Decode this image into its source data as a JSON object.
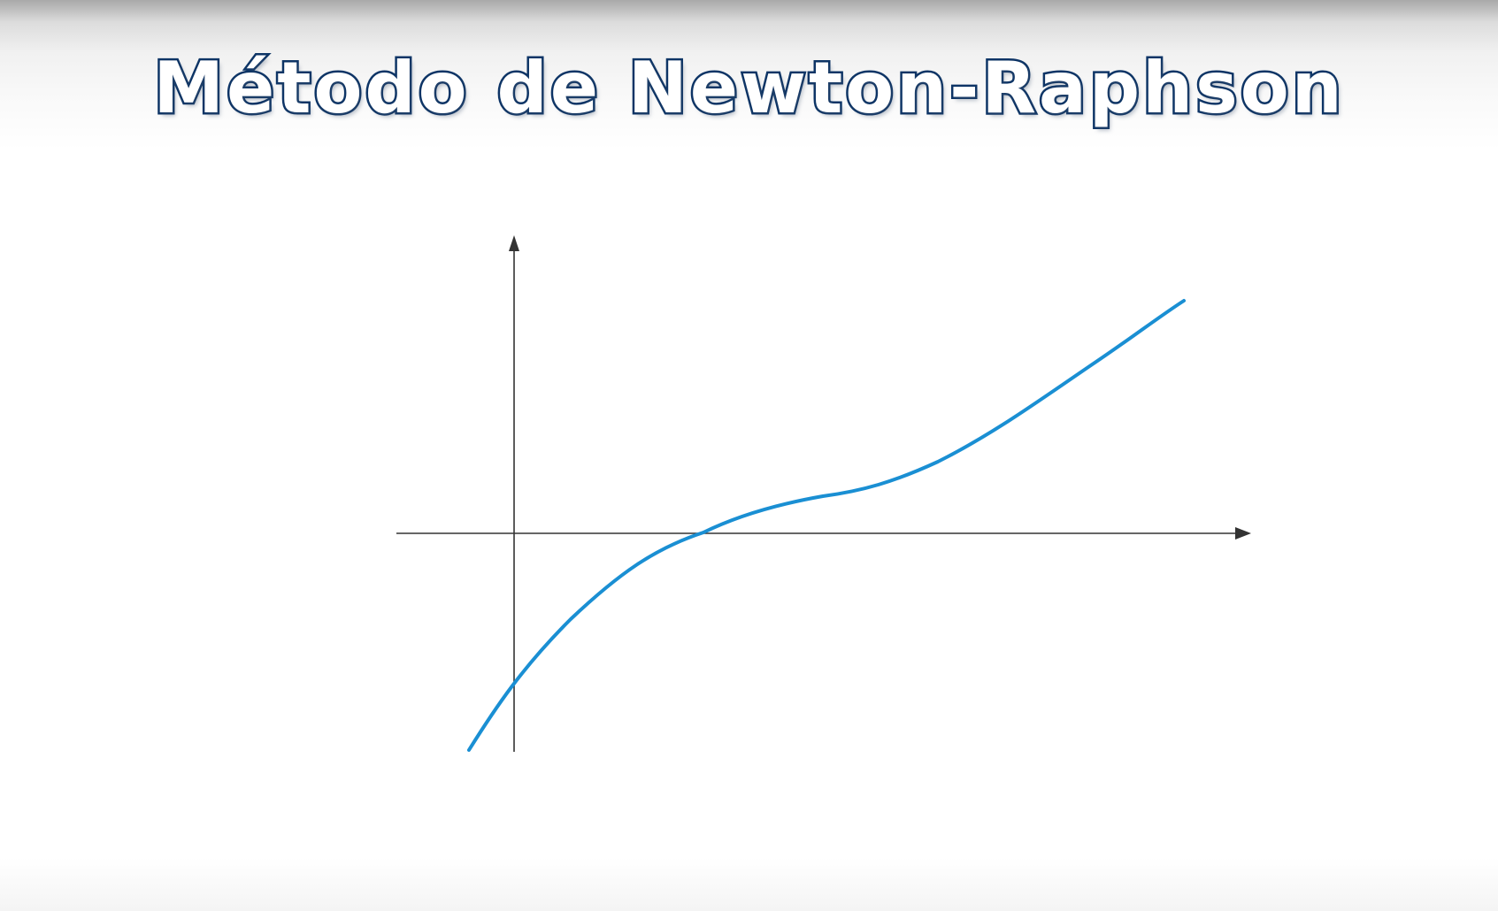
{
  "title": "Método de Newton-Raphson",
  "diagram": {
    "axes": {
      "x_axis": "horizontal axis with arrowhead",
      "y_axis": "vertical axis with arrowhead",
      "color": "#333333"
    },
    "curve": {
      "shape": "cubic-like increasing curve crossing the x-axis once",
      "color": "#1a8fd3"
    }
  }
}
